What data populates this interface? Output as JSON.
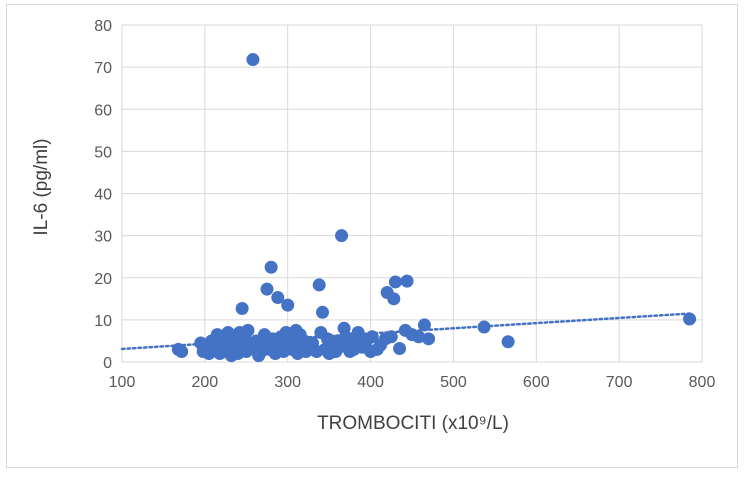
{
  "chart_data": {
    "type": "scatter",
    "xlabel": "TROMBOCITI (x10⁹/L)",
    "ylabel": "IL-6 (pg/ml)",
    "xlim": [
      100,
      800
    ],
    "ylim": [
      0,
      80
    ],
    "xticks": [
      100,
      200,
      300,
      400,
      500,
      600,
      700,
      800
    ],
    "yticks": [
      0,
      10,
      20,
      30,
      40,
      50,
      60,
      70,
      80
    ],
    "grid": true,
    "legend": "none",
    "marker_color": "#4472c4",
    "trendline": {
      "type": "linear",
      "style": "dotted",
      "x": [
        100,
        785
      ],
      "y": [
        3.1,
        11.5
      ]
    },
    "series": [
      {
        "points": [
          [
            168,
            3
          ],
          [
            172,
            2.5
          ],
          [
            195,
            4.5
          ],
          [
            198,
            2.5
          ],
          [
            200,
            3.5
          ],
          [
            205,
            2
          ],
          [
            208,
            5
          ],
          [
            210,
            3
          ],
          [
            212,
            4
          ],
          [
            215,
            6.5
          ],
          [
            218,
            2
          ],
          [
            220,
            3.5
          ],
          [
            222,
            5
          ],
          [
            225,
            2.5
          ],
          [
            228,
            7
          ],
          [
            230,
            4
          ],
          [
            232,
            1.5
          ],
          [
            235,
            3
          ],
          [
            238,
            5.5
          ],
          [
            240,
            2
          ],
          [
            242,
            7
          ],
          [
            245,
            12.7
          ],
          [
            246,
            3.5
          ],
          [
            248,
            6
          ],
          [
            250,
            2.5
          ],
          [
            252,
            7.5
          ],
          [
            255,
            4
          ],
          [
            258,
            71.8
          ],
          [
            260,
            3
          ],
          [
            262,
            5
          ],
          [
            265,
            1.5
          ],
          [
            268,
            2.5
          ],
          [
            270,
            4.5
          ],
          [
            272,
            6.5
          ],
          [
            275,
            17.3
          ],
          [
            278,
            3
          ],
          [
            280,
            22.5
          ],
          [
            282,
            5.5
          ],
          [
            285,
            2
          ],
          [
            288,
            15.3
          ],
          [
            290,
            3.5
          ],
          [
            292,
            6
          ],
          [
            295,
            2.5
          ],
          [
            298,
            7
          ],
          [
            300,
            13.5
          ],
          [
            302,
            4
          ],
          [
            305,
            3
          ],
          [
            308,
            5
          ],
          [
            310,
            7.5
          ],
          [
            312,
            2
          ],
          [
            315,
            6.5
          ],
          [
            318,
            3.5
          ],
          [
            320,
            5
          ],
          [
            322,
            2.5
          ],
          [
            325,
            4
          ],
          [
            328,
            3
          ],
          [
            330,
            4.5
          ],
          [
            335,
            2.5
          ],
          [
            338,
            18.3
          ],
          [
            340,
            7
          ],
          [
            342,
            11.8
          ],
          [
            345,
            3
          ],
          [
            348,
            5.5
          ],
          [
            350,
            2
          ],
          [
            355,
            4
          ],
          [
            358,
            2.5
          ],
          [
            360,
            5
          ],
          [
            362,
            3.5
          ],
          [
            365,
            30
          ],
          [
            368,
            8
          ],
          [
            370,
            6
          ],
          [
            372,
            4
          ],
          [
            375,
            2.5
          ],
          [
            378,
            5.5
          ],
          [
            380,
            3
          ],
          [
            385,
            7
          ],
          [
            388,
            4.5
          ],
          [
            390,
            3.5
          ],
          [
            395,
            5
          ],
          [
            400,
            2.5
          ],
          [
            402,
            6
          ],
          [
            408,
            3
          ],
          [
            412,
            4
          ],
          [
            418,
            5.5
          ],
          [
            420,
            16.5
          ],
          [
            425,
            6
          ],
          [
            428,
            15
          ],
          [
            430,
            19
          ],
          [
            435,
            3.2
          ],
          [
            442,
            7.5
          ],
          [
            444,
            19.2
          ],
          [
            450,
            6.5
          ],
          [
            458,
            6
          ],
          [
            465,
            8.8
          ],
          [
            470,
            5.5
          ],
          [
            537,
            8.3
          ],
          [
            566,
            4.8
          ],
          [
            785,
            10.2
          ]
        ]
      }
    ]
  }
}
